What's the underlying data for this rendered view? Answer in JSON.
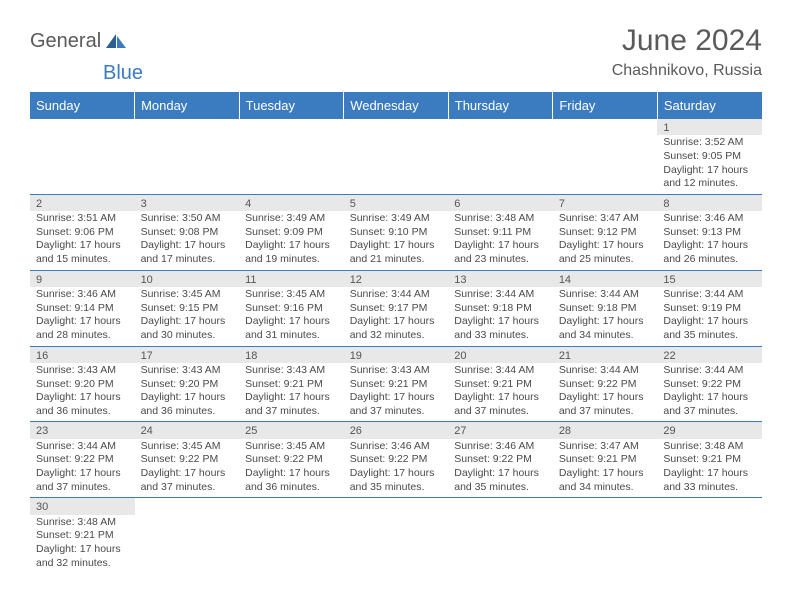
{
  "logo": {
    "part1": "General",
    "part2": "Blue"
  },
  "title": "June 2024",
  "location": "Chashnikovo, Russia",
  "day_headers": [
    "Sunday",
    "Monday",
    "Tuesday",
    "Wednesday",
    "Thursday",
    "Friday",
    "Saturday"
  ],
  "colors": {
    "header_bg": "#3b7bbf",
    "header_text": "#ffffff",
    "daynum_bg": "#e8e8e8",
    "border": "#3b7bbf",
    "text": "#4a4a4a",
    "title_text": "#5a5a5a"
  },
  "weeks": [
    [
      null,
      null,
      null,
      null,
      null,
      null,
      {
        "n": "1",
        "sunrise": "Sunrise: 3:52 AM",
        "sunset": "Sunset: 9:05 PM",
        "daylight": "Daylight: 17 hours and 12 minutes."
      }
    ],
    [
      {
        "n": "2",
        "sunrise": "Sunrise: 3:51 AM",
        "sunset": "Sunset: 9:06 PM",
        "daylight": "Daylight: 17 hours and 15 minutes."
      },
      {
        "n": "3",
        "sunrise": "Sunrise: 3:50 AM",
        "sunset": "Sunset: 9:08 PM",
        "daylight": "Daylight: 17 hours and 17 minutes."
      },
      {
        "n": "4",
        "sunrise": "Sunrise: 3:49 AM",
        "sunset": "Sunset: 9:09 PM",
        "daylight": "Daylight: 17 hours and 19 minutes."
      },
      {
        "n": "5",
        "sunrise": "Sunrise: 3:49 AM",
        "sunset": "Sunset: 9:10 PM",
        "daylight": "Daylight: 17 hours and 21 minutes."
      },
      {
        "n": "6",
        "sunrise": "Sunrise: 3:48 AM",
        "sunset": "Sunset: 9:11 PM",
        "daylight": "Daylight: 17 hours and 23 minutes."
      },
      {
        "n": "7",
        "sunrise": "Sunrise: 3:47 AM",
        "sunset": "Sunset: 9:12 PM",
        "daylight": "Daylight: 17 hours and 25 minutes."
      },
      {
        "n": "8",
        "sunrise": "Sunrise: 3:46 AM",
        "sunset": "Sunset: 9:13 PM",
        "daylight": "Daylight: 17 hours and 26 minutes."
      }
    ],
    [
      {
        "n": "9",
        "sunrise": "Sunrise: 3:46 AM",
        "sunset": "Sunset: 9:14 PM",
        "daylight": "Daylight: 17 hours and 28 minutes."
      },
      {
        "n": "10",
        "sunrise": "Sunrise: 3:45 AM",
        "sunset": "Sunset: 9:15 PM",
        "daylight": "Daylight: 17 hours and 30 minutes."
      },
      {
        "n": "11",
        "sunrise": "Sunrise: 3:45 AM",
        "sunset": "Sunset: 9:16 PM",
        "daylight": "Daylight: 17 hours and 31 minutes."
      },
      {
        "n": "12",
        "sunrise": "Sunrise: 3:44 AM",
        "sunset": "Sunset: 9:17 PM",
        "daylight": "Daylight: 17 hours and 32 minutes."
      },
      {
        "n": "13",
        "sunrise": "Sunrise: 3:44 AM",
        "sunset": "Sunset: 9:18 PM",
        "daylight": "Daylight: 17 hours and 33 minutes."
      },
      {
        "n": "14",
        "sunrise": "Sunrise: 3:44 AM",
        "sunset": "Sunset: 9:18 PM",
        "daylight": "Daylight: 17 hours and 34 minutes."
      },
      {
        "n": "15",
        "sunrise": "Sunrise: 3:44 AM",
        "sunset": "Sunset: 9:19 PM",
        "daylight": "Daylight: 17 hours and 35 minutes."
      }
    ],
    [
      {
        "n": "16",
        "sunrise": "Sunrise: 3:43 AM",
        "sunset": "Sunset: 9:20 PM",
        "daylight": "Daylight: 17 hours and 36 minutes."
      },
      {
        "n": "17",
        "sunrise": "Sunrise: 3:43 AM",
        "sunset": "Sunset: 9:20 PM",
        "daylight": "Daylight: 17 hours and 36 minutes."
      },
      {
        "n": "18",
        "sunrise": "Sunrise: 3:43 AM",
        "sunset": "Sunset: 9:21 PM",
        "daylight": "Daylight: 17 hours and 37 minutes."
      },
      {
        "n": "19",
        "sunrise": "Sunrise: 3:43 AM",
        "sunset": "Sunset: 9:21 PM",
        "daylight": "Daylight: 17 hours and 37 minutes."
      },
      {
        "n": "20",
        "sunrise": "Sunrise: 3:44 AM",
        "sunset": "Sunset: 9:21 PM",
        "daylight": "Daylight: 17 hours and 37 minutes."
      },
      {
        "n": "21",
        "sunrise": "Sunrise: 3:44 AM",
        "sunset": "Sunset: 9:22 PM",
        "daylight": "Daylight: 17 hours and 37 minutes."
      },
      {
        "n": "22",
        "sunrise": "Sunrise: 3:44 AM",
        "sunset": "Sunset: 9:22 PM",
        "daylight": "Daylight: 17 hours and 37 minutes."
      }
    ],
    [
      {
        "n": "23",
        "sunrise": "Sunrise: 3:44 AM",
        "sunset": "Sunset: 9:22 PM",
        "daylight": "Daylight: 17 hours and 37 minutes."
      },
      {
        "n": "24",
        "sunrise": "Sunrise: 3:45 AM",
        "sunset": "Sunset: 9:22 PM",
        "daylight": "Daylight: 17 hours and 37 minutes."
      },
      {
        "n": "25",
        "sunrise": "Sunrise: 3:45 AM",
        "sunset": "Sunset: 9:22 PM",
        "daylight": "Daylight: 17 hours and 36 minutes."
      },
      {
        "n": "26",
        "sunrise": "Sunrise: 3:46 AM",
        "sunset": "Sunset: 9:22 PM",
        "daylight": "Daylight: 17 hours and 35 minutes."
      },
      {
        "n": "27",
        "sunrise": "Sunrise: 3:46 AM",
        "sunset": "Sunset: 9:22 PM",
        "daylight": "Daylight: 17 hours and 35 minutes."
      },
      {
        "n": "28",
        "sunrise": "Sunrise: 3:47 AM",
        "sunset": "Sunset: 9:21 PM",
        "daylight": "Daylight: 17 hours and 34 minutes."
      },
      {
        "n": "29",
        "sunrise": "Sunrise: 3:48 AM",
        "sunset": "Sunset: 9:21 PM",
        "daylight": "Daylight: 17 hours and 33 minutes."
      }
    ],
    [
      {
        "n": "30",
        "sunrise": "Sunrise: 3:48 AM",
        "sunset": "Sunset: 9:21 PM",
        "daylight": "Daylight: 17 hours and 32 minutes."
      },
      null,
      null,
      null,
      null,
      null,
      null
    ]
  ]
}
